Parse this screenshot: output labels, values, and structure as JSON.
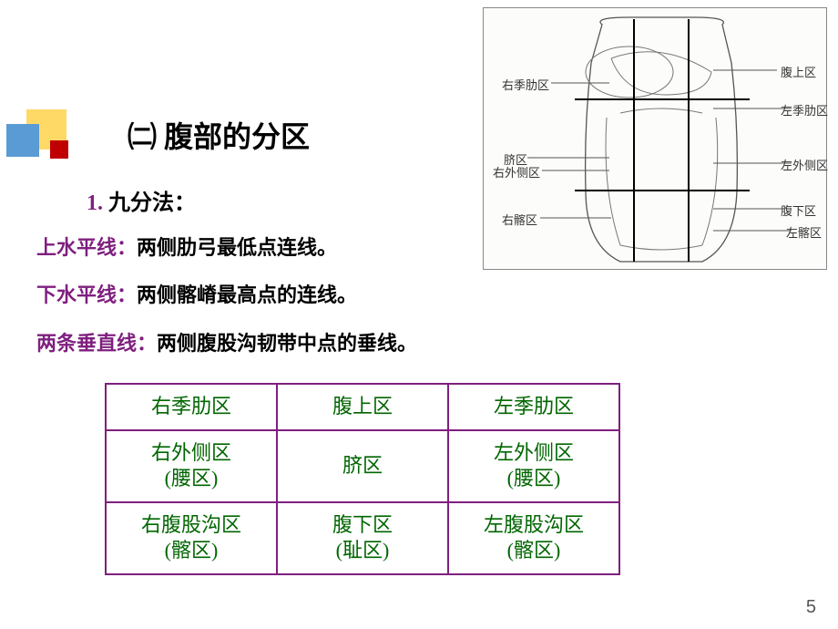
{
  "title": "㈡ 腹部的分区",
  "subtitle_num": "1. ",
  "subtitle_text": "九分法：",
  "defs": [
    {
      "label": "上水平线：",
      "text": "两侧肋弓最低点连线。"
    },
    {
      "label": "下水平线：",
      "text": "两侧髂嵴最高点的连线。"
    },
    {
      "label": "两条垂直线：",
      "text": "两侧腹股沟韧带中点的垂线。"
    }
  ],
  "grid": [
    [
      "右季肋区",
      "腹上区",
      "左季肋区"
    ],
    [
      "右外侧区\n(腰区)",
      "脐区",
      "左外侧区\n(腰区)"
    ],
    [
      "右腹股沟区\n(髂区)",
      "腹下区\n(耻区)",
      "左腹股沟区\n(髂区)"
    ]
  ],
  "figure_labels": {
    "r1": "右季肋区",
    "l1": "腹上区",
    "r2": "脐区",
    "l2": "左季肋区",
    "r3": "右外侧区",
    "l3": "左外侧区",
    "r4": "右髂区",
    "l4": "腹下区",
    "l5": "左髂区"
  },
  "page": "5",
  "colors": {
    "title": "#000000",
    "subtitle_num": "#7f1f7f",
    "def_label": "#7f1f7f",
    "def_text": "#000000",
    "grid_border": "#7f1f7f",
    "grid_text": "#006600",
    "logo_blue": "#5b9bd5",
    "logo_yellow": "#ffd966",
    "logo_red": "#c00000"
  }
}
